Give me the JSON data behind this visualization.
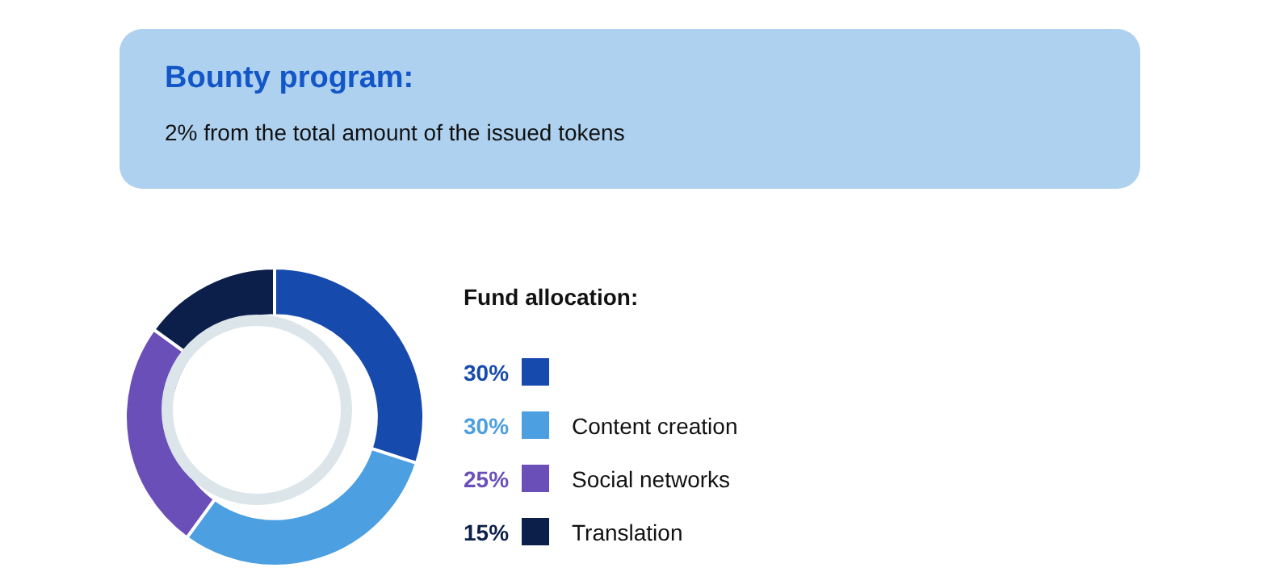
{
  "chart_data": {
    "type": "donut",
    "title": "Bounty program:",
    "subtitle": "2% from the total amount of the issued tokens",
    "legend_title": "Fund allocation:",
    "legend": "right",
    "categories": [
      null,
      "Content creation",
      "Social networks",
      "Translation"
    ],
    "values": [
      30,
      30,
      25,
      15
    ],
    "value_labels": [
      "30%",
      "30%",
      "25%",
      "15%"
    ],
    "colors": [
      "#174aad",
      "#4c9fe0",
      "#6b4fb8",
      "#0b1f4a"
    ]
  }
}
